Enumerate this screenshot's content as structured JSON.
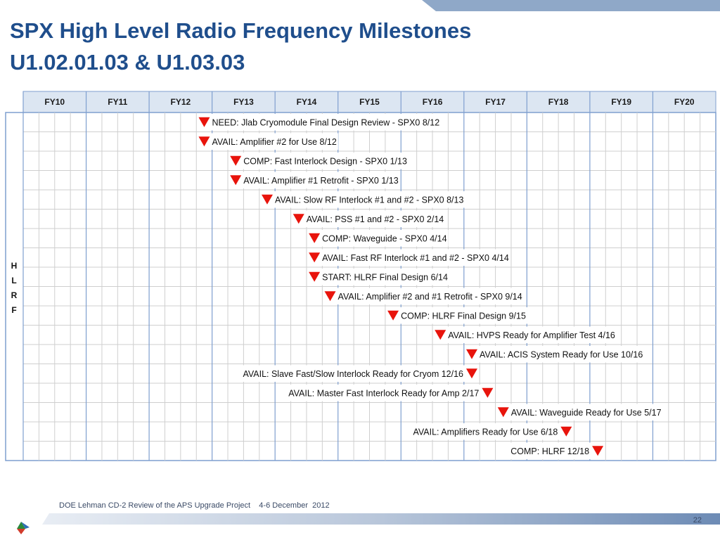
{
  "header": {
    "title": [
      "SPX High Level Radio Frequency Milestones",
      "U1.02.01.03 & U1.03.03"
    ]
  },
  "table": {
    "years": [
      "FY10",
      "FY11",
      "FY12",
      "FY13",
      "FY14",
      "FY15",
      "FY16",
      "FY17",
      "FY18",
      "FY19",
      "FY20"
    ],
    "side_label": [
      "H",
      "L",
      "R",
      "F"
    ],
    "milestones": [
      "NEED: Jlab Cryomodule Final Design Review - SPX0 8/12",
      "AVAIL: Amplifier #2 for Use 8/12",
      "COMP: Fast Interlock Design - SPX0 1/13",
      "AVAIL: Amplifier #1 Retrofit - SPX0 1/13",
      "AVAIL: Slow RF Interlock #1 and #2 - SPX0 8/13",
      "AVAIL: PSS #1 and #2 - SPX0 2/14",
      "COMP: Waveguide - SPX0 4/14",
      "AVAIL: Fast RF Interlock #1 and #2 - SPX0 4/14",
      "START: HLRF Final Design 6/14",
      "AVAIL: Amplifier #2 and #1 Retrofit - SPX0 9/14",
      "COMP: HLRF Final Design 9/15",
      "AVAIL: HVPS Ready for Amplifier Test 4/16",
      "AVAIL: ACIS System Ready for Use 10/16",
      "AVAIL: Slave Fast/Slow Interlock Ready for Cryom 12/16",
      "AVAIL: Master Fast Interlock Ready for Amp 2/17",
      "AVAIL: Waveguide Ready for Use 5/17",
      "AVAIL: Amplifiers Ready for Use 6/18",
      "COMP: HLRF 12/18"
    ]
  },
  "footer": {
    "text": "DOE Lehman CD-2 Review of the APS Upgrade Project    4-6 December  2012",
    "page": "22"
  }
}
